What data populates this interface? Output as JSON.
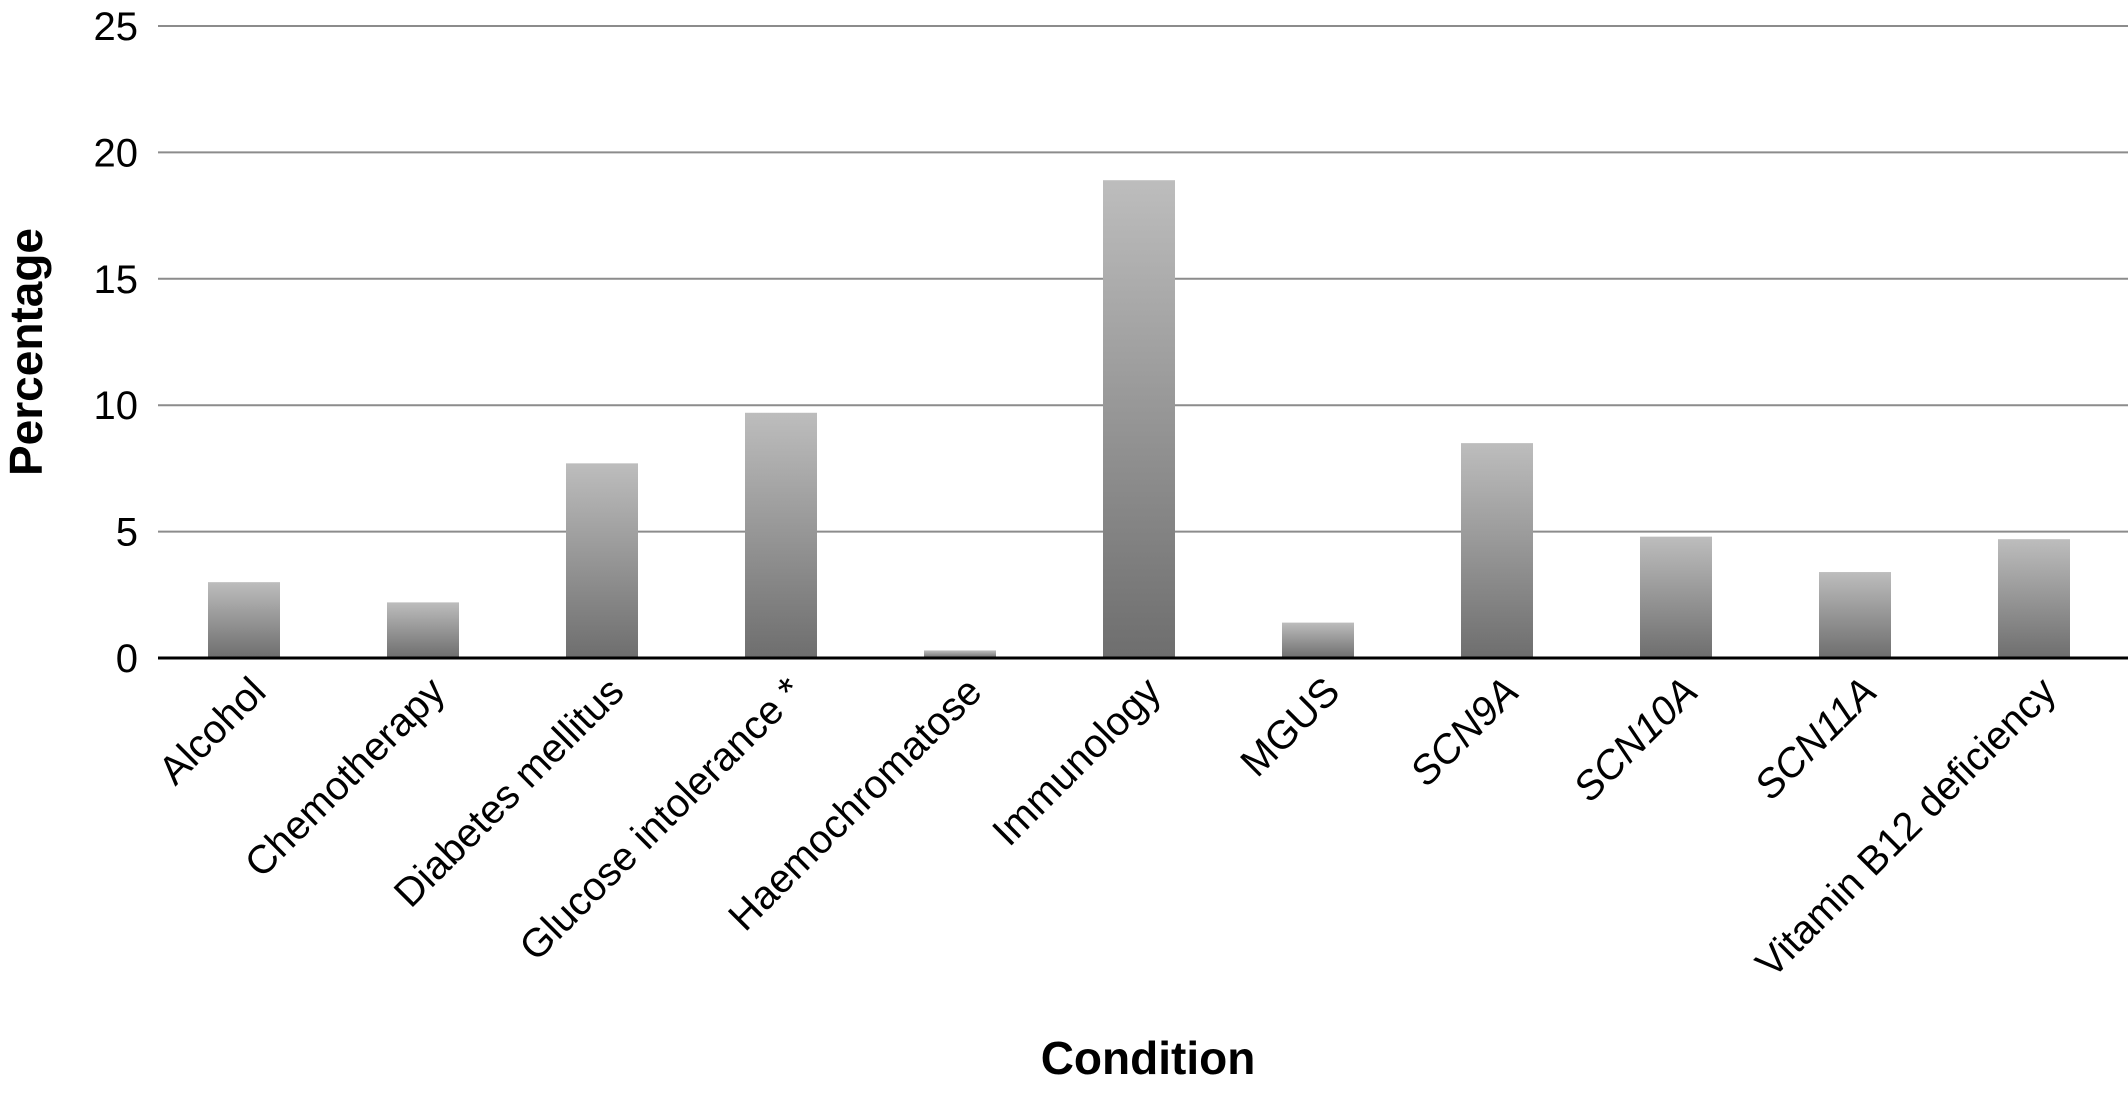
{
  "chart_data": {
    "type": "bar",
    "title": "",
    "xlabel": "Condition",
    "ylabel": "Percentage",
    "ylim": [
      0,
      25
    ],
    "yticks": [
      0,
      5,
      10,
      15,
      20,
      25
    ],
    "grid": true,
    "legend": "none",
    "bar_color": "#9a9a9a",
    "categories": [
      "Alcohol",
      "Chemotherapy",
      "Diabetes mellitus",
      "Glucose intolerance *",
      "Haemochromatose",
      "Immunology",
      "MGUS",
      "SCN9A",
      "SCN10A",
      "SCN11A",
      "Vitamin B12 deficiency"
    ],
    "italic_categories": [
      "SCN9A",
      "SCN10A",
      "SCN11A"
    ],
    "values": [
      3.0,
      2.2,
      7.7,
      9.7,
      0.3,
      18.9,
      1.4,
      8.5,
      4.8,
      3.4,
      4.7
    ]
  }
}
